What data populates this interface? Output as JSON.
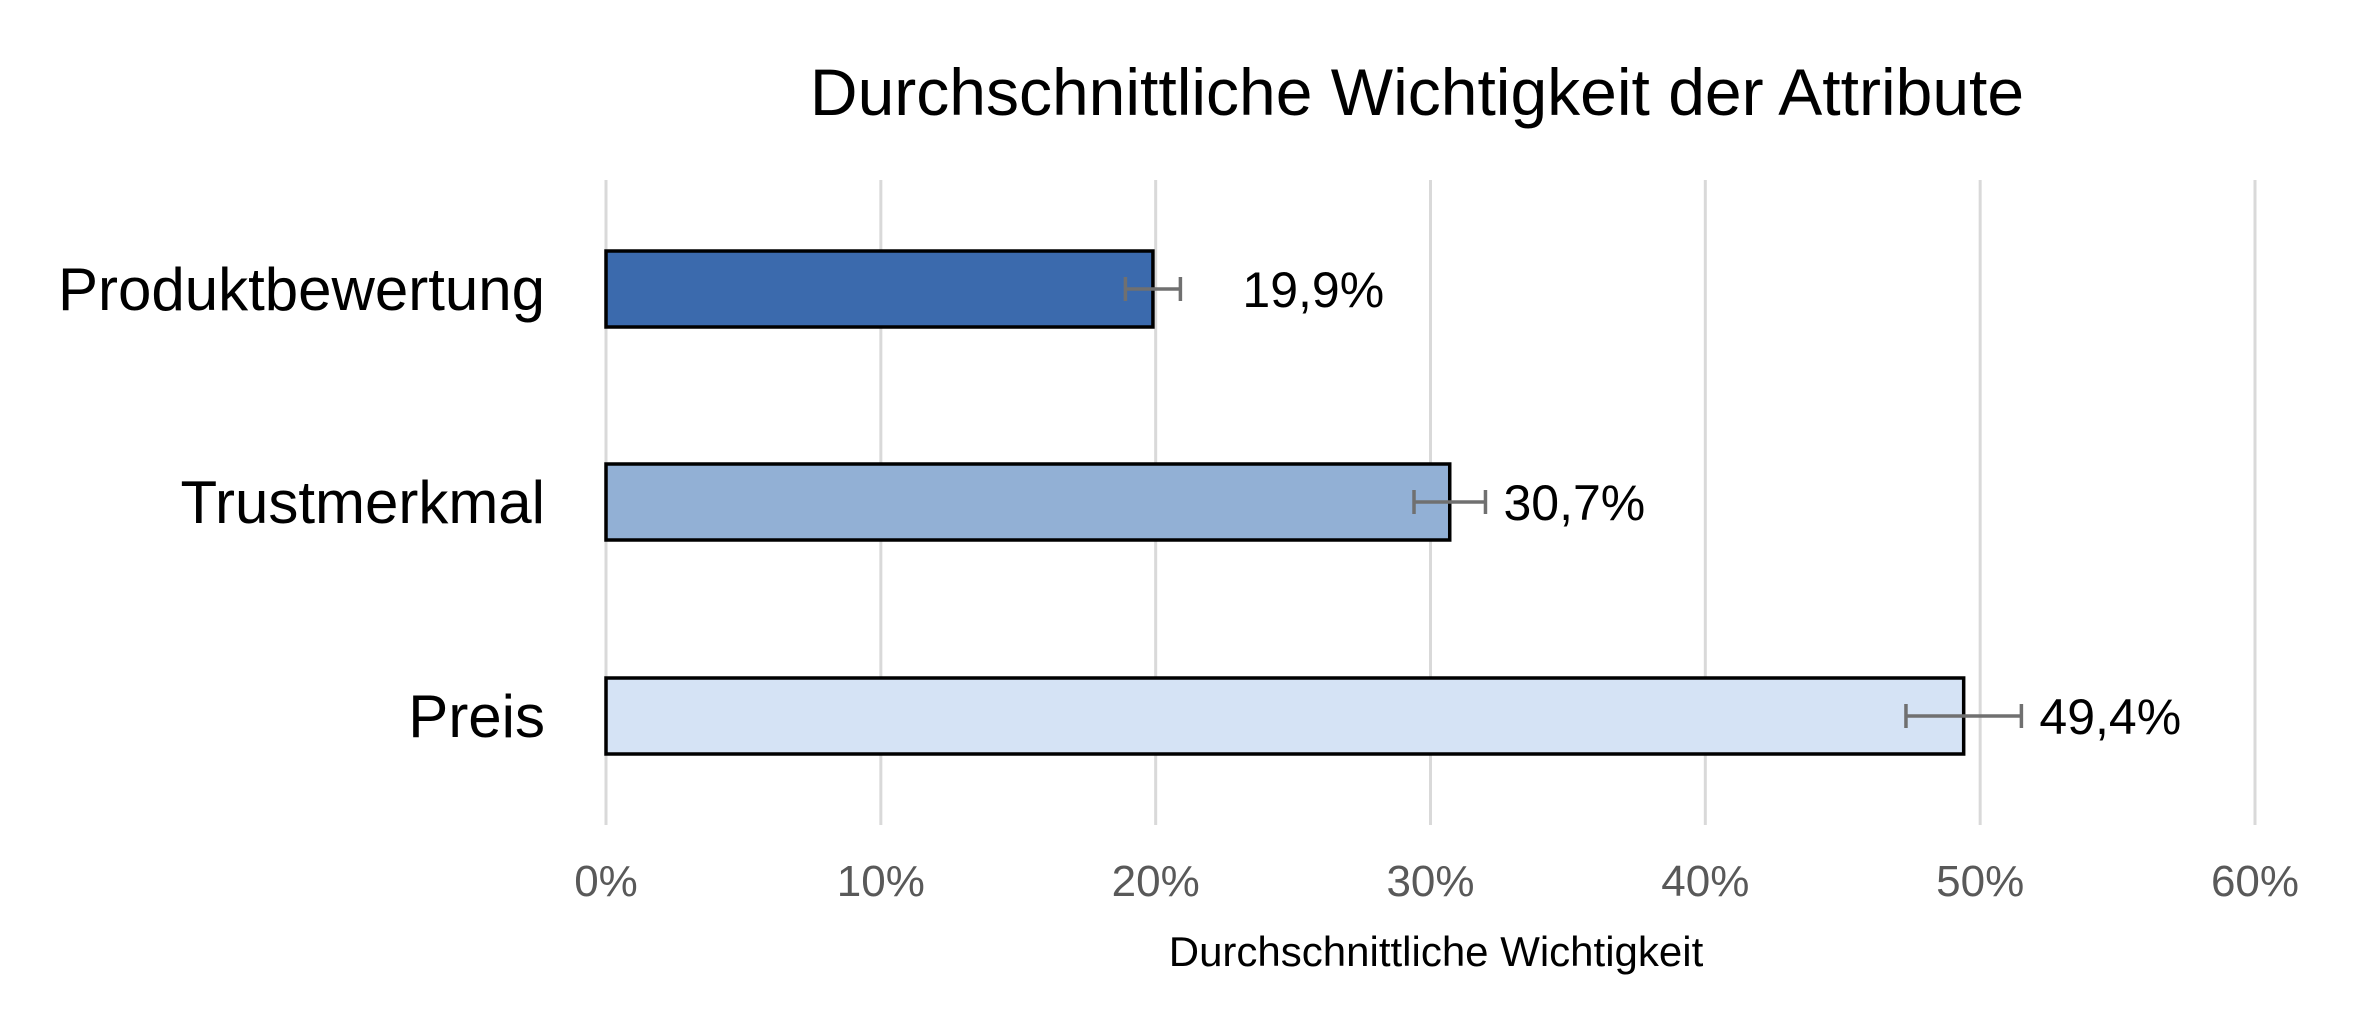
{
  "chart_data": {
    "type": "bar",
    "orientation": "horizontal",
    "title": "Durchschnittliche Wichtigkeit der Attribute",
    "xlabel": "Durchschnittliche Wichtigkeit",
    "ylabel": "",
    "categories": [
      "Produktbewertung",
      "Trustmerkmal",
      "Preis"
    ],
    "values": [
      19.9,
      30.7,
      49.4
    ],
    "error": [
      1.0,
      1.3,
      2.1
    ],
    "data_labels": [
      "19,9%",
      "30,7%",
      "49,4%"
    ],
    "colors": [
      "#3b6aad",
      "#92b0d5",
      "#d5e3f5"
    ],
    "bar_outline": "#000000",
    "error_bar_color": "#707070",
    "xlim": [
      0,
      60
    ],
    "ticks": [
      0,
      10,
      20,
      30,
      40,
      50,
      60
    ],
    "tick_labels": [
      "0%",
      "10%",
      "20%",
      "30%",
      "40%",
      "50%",
      "60%"
    ],
    "grid": "vertical",
    "grid_color": "#d9d9d9",
    "legend": "none"
  }
}
